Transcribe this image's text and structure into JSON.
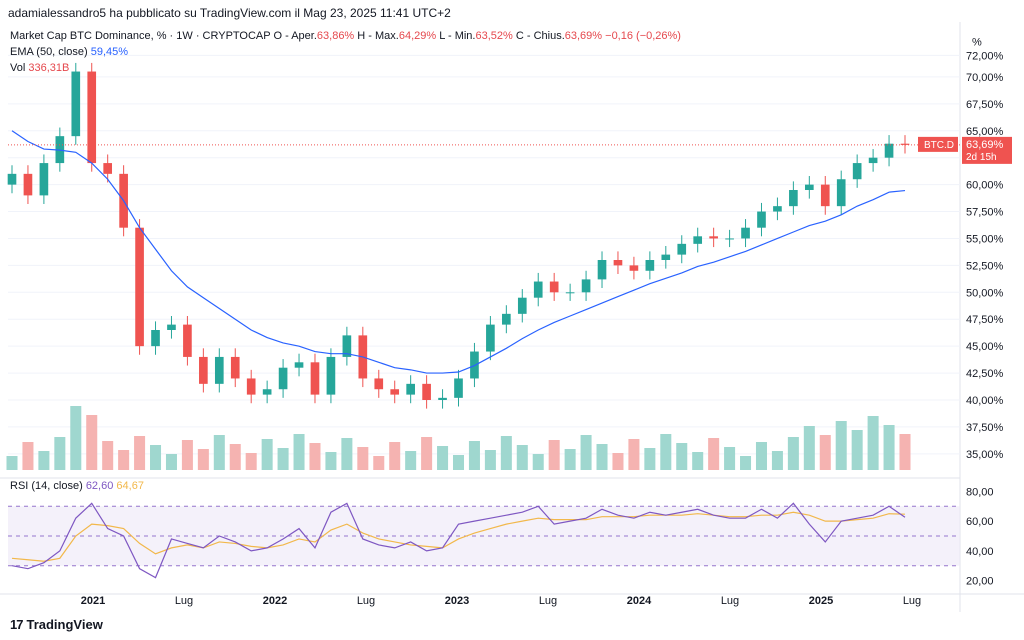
{
  "publisher_line": "adamialessandro5 ha pubblicato su TradingView.com il Mag 23, 2025 11:41 UTC+2",
  "header": {
    "symbol": "Market Cap BTC Dominance, % · 1W · CRYPTOCAP",
    "open_label": "O - Aper.",
    "open_value": "63,86%",
    "high_label": "H - Max.",
    "high_value": "64,29%",
    "low_label": "L - Min.",
    "low_value": "63,52%",
    "close_label": "C - Chius.",
    "close_value": "63,69%",
    "change_value": "−0,16 (−0,26%)",
    "ema_label": "EMA (50, close)",
    "ema_value": "59,45%",
    "vol_label": "Vol",
    "vol_value": "336,31B"
  },
  "price_axis": {
    "unit": "%",
    "ticks": [
      "72,00%",
      "70,00%",
      "67,50%",
      "65,00%",
      "62,50%",
      "60,00%",
      "57,50%",
      "55,00%",
      "52,50%",
      "50,00%",
      "47,50%",
      "45,00%",
      "42,50%",
      "40,00%",
      "37,50%",
      "35,00%"
    ]
  },
  "tags": {
    "symbol": "BTC.D",
    "price": "63,69%",
    "countdown": "2d 15h"
  },
  "rsi": {
    "label": "RSI (14, close)",
    "value1": "62,60",
    "value2": "64,67",
    "ticks": [
      "80,00",
      "60,00",
      "40,00",
      "20,00"
    ]
  },
  "time_axis": [
    "2021",
    "Lug",
    "2022",
    "Lug",
    "2023",
    "Lug",
    "2024",
    "Lug",
    "2025",
    "Lug"
  ],
  "logo_text": "TradingView",
  "colors": {
    "up": "#26a69a",
    "down": "#ef5350",
    "ema": "#2962ff",
    "rsi": "#7e57c2",
    "rsi_ma": "#f2b84b"
  },
  "chart_data": {
    "type": "candlestick",
    "title": "Market Cap BTC Dominance, % · 1W · CRYPTOCAP",
    "ylabel": "%",
    "ylim": [
      33.5,
      72.5
    ],
    "x": [
      "2020-09",
      "2020-10",
      "2020-11",
      "2020-12",
      "2021-01",
      "2021-02",
      "2021-03",
      "2021-04",
      "2021-05",
      "2021-06",
      "2021-07",
      "2021-08",
      "2021-09",
      "2021-10",
      "2021-11",
      "2021-12",
      "2022-01",
      "2022-02",
      "2022-03",
      "2022-04",
      "2022-05",
      "2022-06",
      "2022-07",
      "2022-08",
      "2022-09",
      "2022-10",
      "2022-11",
      "2022-12",
      "2023-01",
      "2023-02",
      "2023-03",
      "2023-04",
      "2023-05",
      "2023-06",
      "2023-07",
      "2023-08",
      "2023-09",
      "2023-10",
      "2023-11",
      "2023-12",
      "2024-01",
      "2024-02",
      "2024-03",
      "2024-04",
      "2024-05",
      "2024-06",
      "2024-07",
      "2024-08",
      "2024-09",
      "2024-10",
      "2024-11",
      "2024-12",
      "2025-01",
      "2025-02",
      "2025-03",
      "2025-04",
      "2025-05"
    ],
    "series": [
      {
        "name": "BTC.D",
        "values": [
          61.0,
          59.0,
          62.0,
          64.5,
          70.5,
          62.0,
          61.0,
          56.0,
          45.0,
          46.5,
          47.0,
          44.0,
          41.5,
          44.0,
          42.0,
          40.5,
          41.0,
          43.0,
          43.5,
          40.5,
          44.0,
          46.0,
          42.0,
          41.0,
          40.5,
          41.5,
          40.0,
          40.2,
          42.0,
          44.5,
          47.0,
          48.0,
          49.5,
          51.0,
          50.0,
          50.0,
          51.2,
          53.0,
          52.5,
          52.0,
          53.0,
          53.5,
          54.5,
          55.2,
          55.0,
          55.0,
          56.0,
          57.5,
          58.0,
          59.5,
          60.0,
          58.0,
          60.5,
          62.0,
          62.5,
          63.8,
          63.69
        ]
      },
      {
        "name": "EMA (50, close)",
        "values": [
          65.0,
          64.0,
          63.3,
          63.2,
          63.0,
          62.0,
          60.5,
          58.5,
          56.0,
          54.0,
          52.0,
          50.5,
          49.5,
          48.5,
          47.5,
          46.5,
          45.8,
          45.3,
          45.0,
          44.5,
          44.3,
          44.3,
          44.0,
          43.5,
          43.0,
          42.8,
          42.5,
          42.5,
          42.6,
          43.2,
          44.0,
          44.8,
          45.7,
          46.5,
          47.2,
          47.8,
          48.4,
          49.0,
          49.6,
          50.2,
          50.8,
          51.3,
          51.8,
          52.4,
          52.8,
          53.3,
          53.8,
          54.4,
          55.0,
          55.6,
          56.2,
          56.6,
          57.2,
          58.0,
          58.6,
          59.3,
          59.45
        ]
      }
    ],
    "rsi_series": [
      {
        "name": "RSI (14, close)",
        "values": [
          30,
          28,
          32,
          40,
          62,
          72,
          55,
          50,
          28,
          22,
          48,
          45,
          42,
          50,
          46,
          40,
          42,
          48,
          55,
          42,
          66,
          72,
          48,
          44,
          42,
          46,
          40,
          42,
          58,
          60,
          62,
          64,
          66,
          70,
          58,
          60,
          62,
          68,
          64,
          62,
          66,
          64,
          66,
          68,
          64,
          62,
          62,
          68,
          62,
          72,
          58,
          46,
          60,
          62,
          64,
          70,
          62.6
        ]
      },
      {
        "name": "RSI MA",
        "values": [
          35,
          34,
          33,
          35,
          50,
          58,
          57,
          55,
          45,
          38,
          42,
          44,
          42,
          46,
          45,
          43,
          42,
          44,
          48,
          46,
          54,
          58,
          52,
          48,
          46,
          44,
          43,
          42,
          48,
          52,
          55,
          58,
          60,
          62,
          61,
          61,
          61,
          63,
          63,
          63,
          64,
          64,
          64,
          65,
          64,
          63,
          63,
          64,
          64,
          66,
          64,
          60,
          60,
          61,
          62,
          65,
          64.67
        ]
      }
    ],
    "rsi_ylim": [
      15,
      85
    ],
    "grid": true,
    "legend": "top-left"
  }
}
